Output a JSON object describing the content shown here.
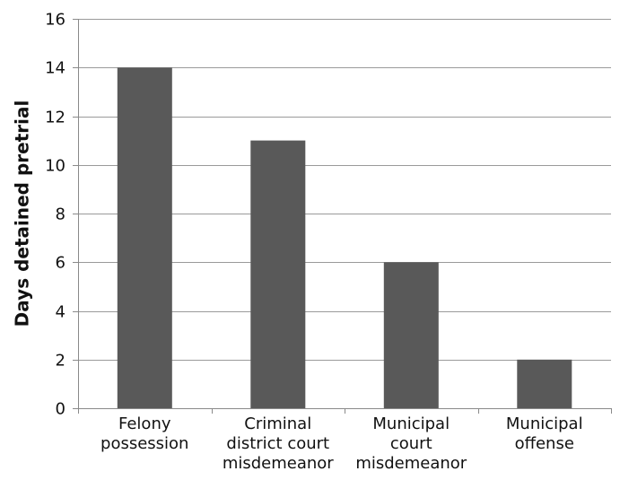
{
  "chart_data": {
    "type": "bar",
    "title": "",
    "xlabel": "",
    "ylabel": "Days detained pretrial",
    "categories": [
      [
        "Felony",
        "possession"
      ],
      [
        "Criminal",
        "district court",
        "misdemeanor"
      ],
      [
        "Municipal",
        "court",
        "misdemeanor"
      ],
      [
        "Municipal",
        "offense"
      ]
    ],
    "values": [
      14,
      11,
      6,
      2
    ],
    "ylim": [
      0,
      16
    ],
    "yticks": [
      0,
      2,
      4,
      6,
      8,
      10,
      12,
      14,
      16
    ],
    "grid": true,
    "legend": "none",
    "colors": {
      "bar": "#595959",
      "grid": "#9a9a9a",
      "axis": "#8a8a8a",
      "text": "#111111"
    }
  }
}
